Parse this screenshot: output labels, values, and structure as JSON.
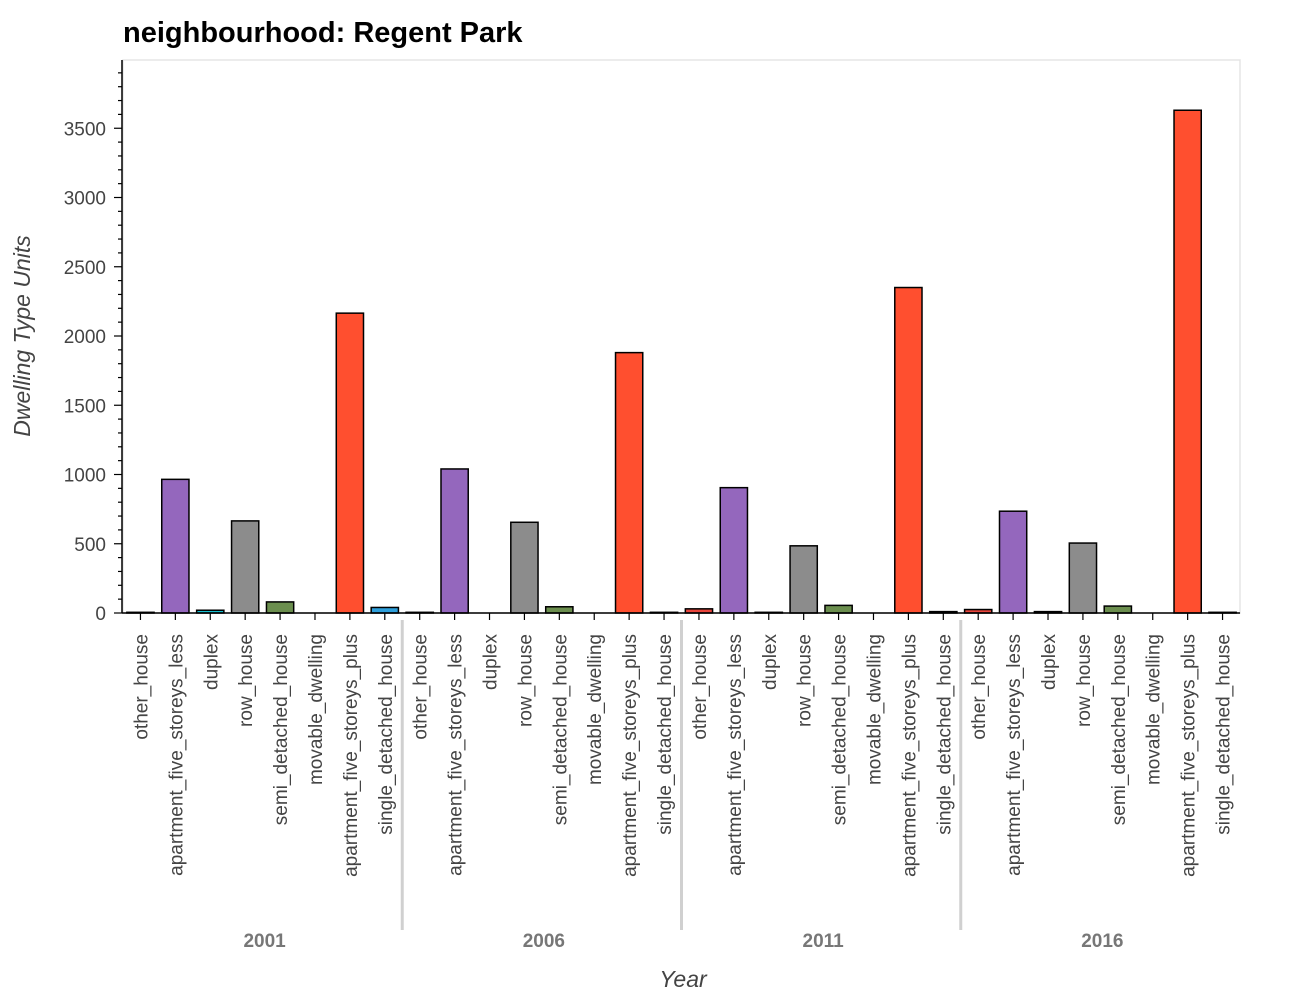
{
  "chart_data": {
    "type": "bar",
    "title": "neighbourhood: Regent Park",
    "xlabel": "Year",
    "ylabel": "Dwelling Type Units",
    "ylim": [
      0,
      4000
    ],
    "yticks": [
      0,
      500,
      1000,
      1500,
      2000,
      2500,
      3000,
      3500
    ],
    "grid": false,
    "groups": [
      "2001",
      "2006",
      "2011",
      "2016"
    ],
    "categories": [
      "other_house",
      "apartment_five_storeys_less",
      "duplex",
      "row_house",
      "semi_detached_house",
      "movable_dwelling",
      "apartment_five_storeys_plus",
      "single_detached_house"
    ],
    "colors": {
      "other_house": "#e8453c",
      "apartment_five_storeys_less": "#9467bd",
      "duplex": "#17becf",
      "row_house": "#8c8c8c",
      "semi_detached_house": "#6b8e4e",
      "movable_dwelling": "#ff7f0e",
      "apartment_five_storeys_plus": "#ff4f2f",
      "single_detached_house": "#2e9fdb"
    },
    "series": [
      {
        "group": "2001",
        "values": [
          5,
          965,
          20,
          665,
          80,
          0,
          2165,
          40
        ]
      },
      {
        "group": "2006",
        "values": [
          5,
          1040,
          0,
          655,
          45,
          0,
          1880,
          5
        ]
      },
      {
        "group": "2011",
        "values": [
          30,
          905,
          5,
          485,
          55,
          0,
          2350,
          10
        ]
      },
      {
        "group": "2016",
        "values": [
          25,
          735,
          10,
          505,
          50,
          0,
          3630,
          5
        ]
      }
    ]
  }
}
